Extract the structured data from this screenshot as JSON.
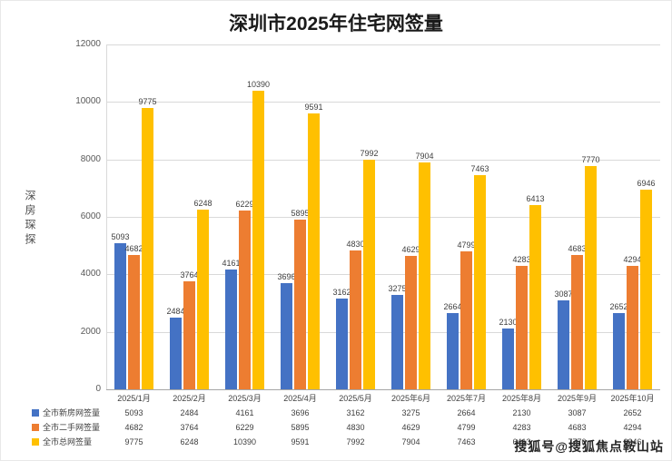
{
  "title": "深圳市2025年住宅网签量",
  "watermark_left": "深房琛探",
  "watermark_bottom_right": "搜狐号@搜狐焦点鞍山站",
  "colors": {
    "series_blue": "#4472C4",
    "series_orange": "#ED7D31",
    "series_yellow": "#FFC000",
    "gridline": "#d9d9d9",
    "axis_text": "#595959",
    "label_text": "#404040"
  },
  "chart_data": {
    "type": "bar",
    "title": "深圳市2025年住宅网签量",
    "categories": [
      "2025/1月",
      "2025/2月",
      "2025/3月",
      "2025/4月",
      "2025/5月",
      "2025年6月",
      "2025年7月",
      "2025年8月",
      "2025年9月",
      "2025年10月"
    ],
    "series": [
      {
        "name": "全市新房网签量",
        "color": "#4472C4",
        "values": [
          5093,
          2484,
          4161,
          3696,
          3162,
          3275,
          2664,
          2130,
          3087,
          2652
        ]
      },
      {
        "name": "全市二手网签量",
        "color": "#ED7D31",
        "values": [
          4682,
          3764,
          6229,
          5895,
          4830,
          4629,
          4799,
          4283,
          4683,
          4294
        ]
      },
      {
        "name": "全市总网签量",
        "color": "#FFC000",
        "values": [
          9775,
          6248,
          10390,
          9591,
          7992,
          7904,
          7463,
          6413,
          7770,
          6946
        ]
      }
    ],
    "ylim": [
      0,
      12000
    ],
    "yticks": [
      0,
      2000,
      4000,
      6000,
      8000,
      10000,
      12000
    ],
    "grid": true,
    "data_labels": true,
    "legend_position": "data-table-left",
    "xlabel": "",
    "ylabel": ""
  }
}
